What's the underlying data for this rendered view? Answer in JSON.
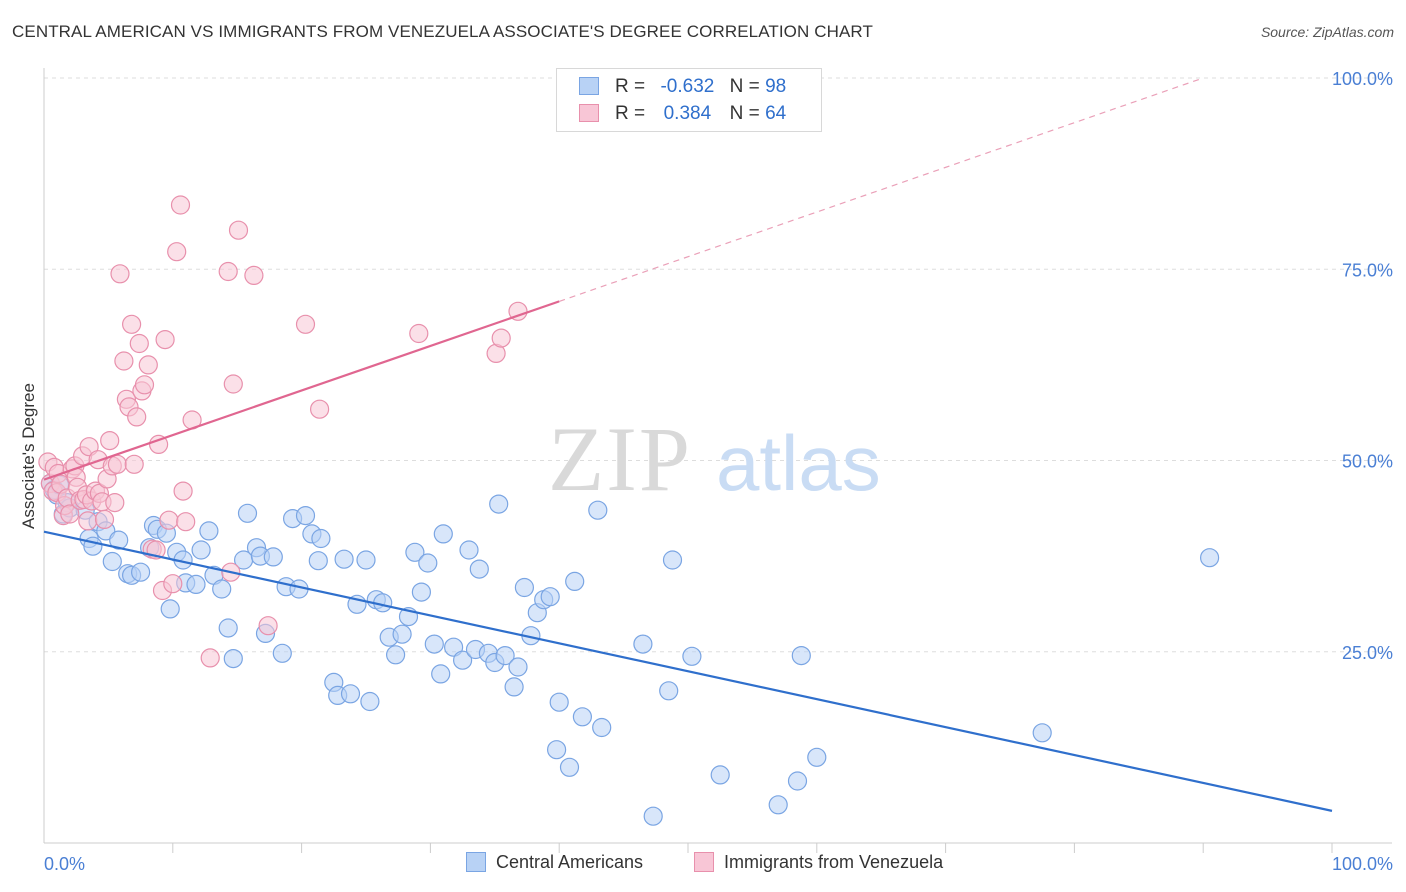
{
  "title": "CENTRAL AMERICAN VS IMMIGRANTS FROM VENEZUELA ASSOCIATE'S DEGREE CORRELATION CHART",
  "source": "Source: ZipAtlas.com",
  "colors": {
    "blue": "#2f6fcc",
    "blue_fill": "#b8d2f5",
    "pink": "#e06690",
    "pink_fill": "#f8c6d6",
    "grid": "#dddddd",
    "axis_label": "#4a7fd4"
  },
  "legend": {
    "rows": [
      {
        "r_label": "R =",
        "r_value": "-0.632",
        "n_label": "N =",
        "n_value": "98"
      },
      {
        "r_label": "R =",
        "r_value": "0.384",
        "n_label": "N =",
        "n_value": "64"
      }
    ],
    "bottom": [
      "Central Americans",
      "Immigrants from Venezuela"
    ]
  },
  "chart_data": {
    "type": "scatter",
    "title": "CENTRAL AMERICAN VS IMMIGRANTS FROM VENEZUELA ASSOCIATE'S DEGREE CORRELATION CHART",
    "xlabel": "",
    "ylabel": "Associate's Degree",
    "xlim": [
      0,
      100
    ],
    "ylim": [
      0,
      100
    ],
    "x_tick_labels": [
      "0.0%",
      "100.0%"
    ],
    "y_tick_labels": [
      {
        "value": 100,
        "label": "100.0%"
      },
      {
        "value": 75,
        "label": "75.0%"
      },
      {
        "value": 50,
        "label": "50.0%"
      },
      {
        "value": 25,
        "label": "25.0%"
      }
    ],
    "watermark": {
      "zip": "ZIP",
      "atlas": "atlas"
    },
    "series": [
      {
        "name": "Central Americans",
        "color": "blue",
        "R": -0.632,
        "N": 98,
        "trend": {
          "x0": 0,
          "y0": 40.7,
          "x1": 100,
          "y1": 4.2
        },
        "points": [
          [
            0.5,
            47
          ],
          [
            0.8,
            46.2
          ],
          [
            1.0,
            45.5
          ],
          [
            1.2,
            46.8
          ],
          [
            1.5,
            43
          ],
          [
            1.8,
            44.5
          ],
          [
            2.0,
            43.8
          ],
          [
            3.2,
            43.5
          ],
          [
            3.5,
            39.8
          ],
          [
            3.8,
            38.8
          ],
          [
            4.2,
            42
          ],
          [
            4.8,
            40.8
          ],
          [
            5.3,
            36.8
          ],
          [
            5.8,
            39.6
          ],
          [
            6.5,
            35.2
          ],
          [
            6.8,
            35
          ],
          [
            7.5,
            35.4
          ],
          [
            8.2,
            38.6
          ],
          [
            8.5,
            41.5
          ],
          [
            8.8,
            41
          ],
          [
            9.5,
            40.5
          ],
          [
            9.8,
            30.6
          ],
          [
            10.3,
            38
          ],
          [
            10.8,
            37
          ],
          [
            11.0,
            34
          ],
          [
            11.8,
            33.8
          ],
          [
            12.2,
            38.3
          ],
          [
            12.8,
            40.8
          ],
          [
            13.2,
            35
          ],
          [
            13.8,
            33.2
          ],
          [
            14.3,
            28.1
          ],
          [
            14.7,
            24.1
          ],
          [
            15.5,
            37
          ],
          [
            15.8,
            43.1
          ],
          [
            16.5,
            38.6
          ],
          [
            16.8,
            37.5
          ],
          [
            17.2,
            27.4
          ],
          [
            17.8,
            37.4
          ],
          [
            18.5,
            24.8
          ],
          [
            18.8,
            33.5
          ],
          [
            19.3,
            42.4
          ],
          [
            19.8,
            33.2
          ],
          [
            20.3,
            42.8
          ],
          [
            20.8,
            40.4
          ],
          [
            21.3,
            36.9
          ],
          [
            21.5,
            39.8
          ],
          [
            22.5,
            21
          ],
          [
            22.8,
            19.3
          ],
          [
            23.3,
            37.1
          ],
          [
            23.8,
            19.5
          ],
          [
            24.3,
            31.2
          ],
          [
            25.0,
            37
          ],
          [
            25.3,
            18.5
          ],
          [
            25.8,
            31.8
          ],
          [
            26.3,
            31.4
          ],
          [
            26.8,
            26.9
          ],
          [
            27.3,
            24.6
          ],
          [
            27.8,
            27.3
          ],
          [
            28.3,
            29.6
          ],
          [
            28.8,
            38
          ],
          [
            29.3,
            32.8
          ],
          [
            29.8,
            36.6
          ],
          [
            30.3,
            26
          ],
          [
            30.8,
            22.1
          ],
          [
            31.0,
            40.4
          ],
          [
            31.8,
            25.6
          ],
          [
            32.5,
            23.9
          ],
          [
            33.0,
            38.3
          ],
          [
            33.5,
            25.3
          ],
          [
            33.8,
            35.8
          ],
          [
            34.5,
            24.8
          ],
          [
            35.0,
            23.6
          ],
          [
            35.3,
            44.3
          ],
          [
            35.8,
            24.5
          ],
          [
            36.5,
            20.4
          ],
          [
            36.8,
            23
          ],
          [
            37.3,
            33.4
          ],
          [
            37.8,
            27.1
          ],
          [
            38.3,
            30.1
          ],
          [
            38.8,
            31.8
          ],
          [
            39.3,
            32.2
          ],
          [
            39.8,
            12.2
          ],
          [
            40.0,
            18.4
          ],
          [
            40.8,
            9.9
          ],
          [
            41.2,
            34.2
          ],
          [
            41.8,
            16.5
          ],
          [
            43.0,
            43.5
          ],
          [
            43.3,
            15.1
          ],
          [
            46.5,
            26
          ],
          [
            47.3,
            3.5
          ],
          [
            48.5,
            19.9
          ],
          [
            48.8,
            37
          ],
          [
            50.3,
            24.4
          ],
          [
            52.5,
            8.9
          ],
          [
            57.0,
            5
          ],
          [
            58.5,
            8.1
          ],
          [
            58.8,
            24.5
          ],
          [
            60.0,
            11.2
          ],
          [
            77.5,
            14.4
          ],
          [
            90.5,
            37.3
          ]
        ]
      },
      {
        "name": "Immigrants from Venezuela",
        "color": "pink",
        "R": 0.384,
        "N": 64,
        "trend": {
          "x0": 0,
          "y0": 47.5,
          "x1": 40,
          "y1": 70.8
        },
        "trend_dashed": {
          "x0": 40,
          "y0": 70.8,
          "x1": 90,
          "y1": 100
        },
        "points": [
          [
            0.3,
            49.8
          ],
          [
            0.5,
            47
          ],
          [
            0.7,
            46
          ],
          [
            0.8,
            49.1
          ],
          [
            1.0,
            45.8
          ],
          [
            1.1,
            48.3
          ],
          [
            1.3,
            46.9
          ],
          [
            1.5,
            42.8
          ],
          [
            1.6,
            44.1
          ],
          [
            1.8,
            45.1
          ],
          [
            2.0,
            43
          ],
          [
            2.2,
            48.9
          ],
          [
            2.4,
            49.3
          ],
          [
            2.5,
            47.8
          ],
          [
            2.6,
            46.5
          ],
          [
            2.8,
            44.8
          ],
          [
            3.0,
            50.6
          ],
          [
            3.1,
            44.9
          ],
          [
            3.3,
            45.5
          ],
          [
            3.4,
            42.1
          ],
          [
            3.5,
            51.8
          ],
          [
            3.7,
            44.7
          ],
          [
            4.0,
            46
          ],
          [
            4.2,
            50.1
          ],
          [
            4.3,
            45.7
          ],
          [
            4.5,
            44.6
          ],
          [
            4.7,
            42.3
          ],
          [
            4.9,
            47.6
          ],
          [
            5.1,
            52.6
          ],
          [
            5.3,
            49.3
          ],
          [
            5.5,
            44.5
          ],
          [
            5.7,
            49.5
          ],
          [
            5.9,
            74.4
          ],
          [
            6.2,
            63
          ],
          [
            6.4,
            58
          ],
          [
            6.6,
            57
          ],
          [
            6.8,
            67.8
          ],
          [
            7.0,
            49.5
          ],
          [
            7.2,
            55.7
          ],
          [
            7.4,
            65.3
          ],
          [
            7.6,
            59.1
          ],
          [
            7.8,
            59.9
          ],
          [
            8.1,
            62.5
          ],
          [
            8.4,
            38.4
          ],
          [
            8.7,
            38.3
          ],
          [
            8.9,
            52.1
          ],
          [
            9.2,
            33
          ],
          [
            9.4,
            65.8
          ],
          [
            9.7,
            42.2
          ],
          [
            10.0,
            33.9
          ],
          [
            10.3,
            77.3
          ],
          [
            10.6,
            83.4
          ],
          [
            10.8,
            46
          ],
          [
            11.0,
            42
          ],
          [
            11.5,
            55.3
          ],
          [
            12.9,
            24.2
          ],
          [
            14.3,
            74.7
          ],
          [
            14.5,
            35.4
          ],
          [
            14.7,
            60
          ],
          [
            15.1,
            80.1
          ],
          [
            16.3,
            74.2
          ],
          [
            17.4,
            28.4
          ],
          [
            20.3,
            67.8
          ],
          [
            21.4,
            56.7
          ],
          [
            29.1,
            66.6
          ],
          [
            35.1,
            64
          ],
          [
            35.5,
            66
          ],
          [
            36.8,
            69.5
          ]
        ]
      }
    ]
  }
}
